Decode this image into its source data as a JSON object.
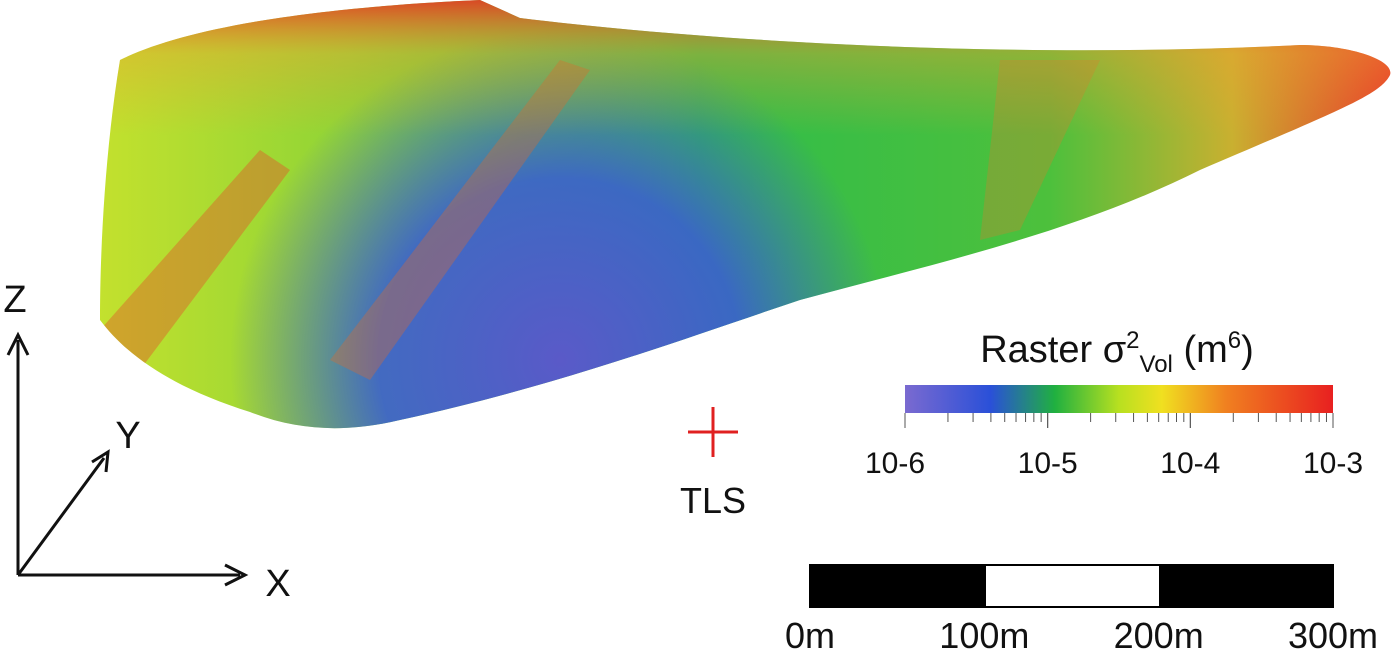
{
  "axes_labels": {
    "z": "Z",
    "y": "Y",
    "x": "X"
  },
  "scanner_label": "TLS",
  "colorbar": {
    "title": {
      "main": "Raster σ",
      "sup": "2",
      "sub": "Vol",
      "unit": " (m",
      "unit_sup": "6",
      "close": ")"
    },
    "ticks": [
      "10-6",
      "10-5",
      "10-4",
      "10-3"
    ]
  },
  "scale_bar": {
    "labels": [
      "0m",
      "100m",
      "200m",
      "300m"
    ]
  }
}
